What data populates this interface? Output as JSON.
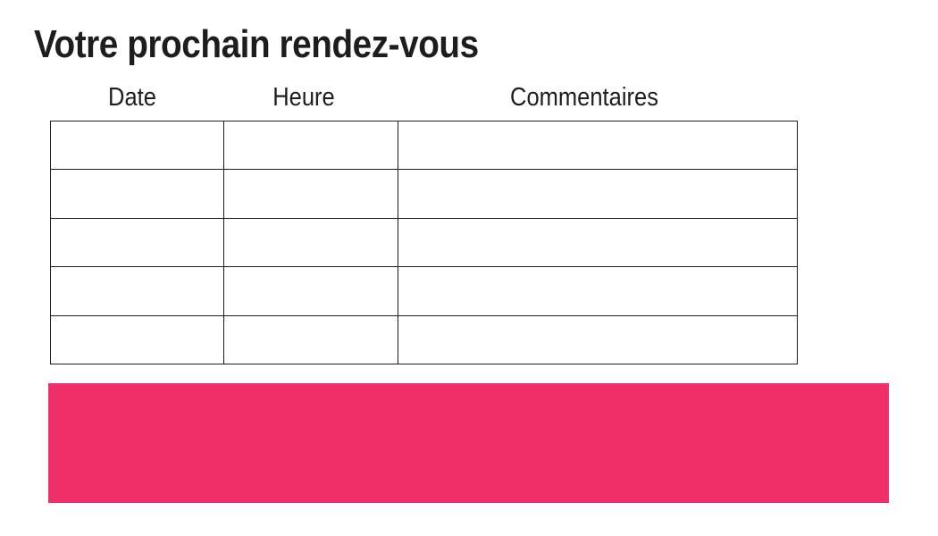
{
  "title": "Votre prochain rendez-vous",
  "table": {
    "headers": [
      "Date",
      "Heure",
      "Commentaires"
    ],
    "rows": [
      [
        "",
        "",
        ""
      ],
      [
        "",
        "",
        ""
      ],
      [
        "",
        "",
        ""
      ],
      [
        "",
        "",
        ""
      ],
      [
        "",
        "",
        ""
      ]
    ]
  },
  "colors": {
    "banner_pink": "#ED2E68",
    "border": "#1D1D1B",
    "text": "#1D1D1B",
    "background": "#FFFFFF"
  }
}
